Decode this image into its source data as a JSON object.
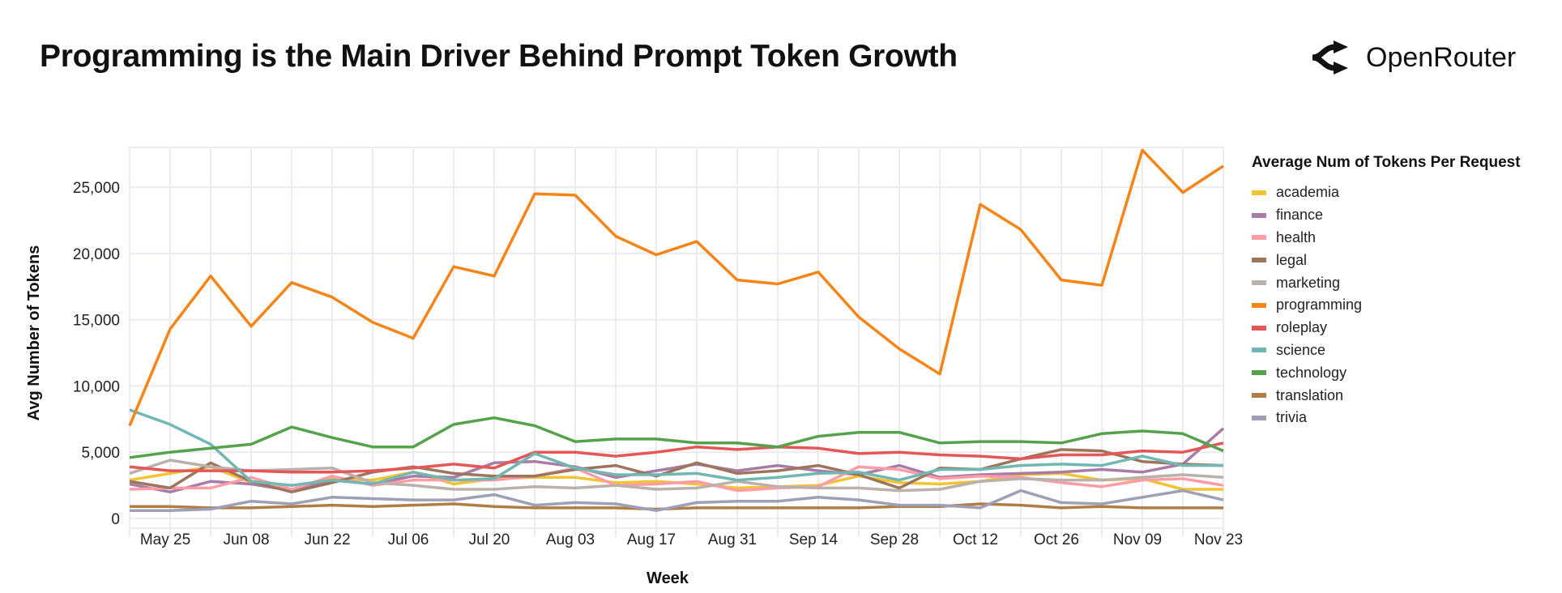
{
  "title": "Programming is the Main Driver Behind Prompt Token Growth",
  "brand": {
    "name": "OpenRouter",
    "icon": "openrouter-logo-icon"
  },
  "chart_data": {
    "type": "line",
    "title": "Programming is the Main Driver Behind Prompt Token Growth",
    "xlabel": "Week",
    "ylabel": "Avg Number of Tokens",
    "legend_title": "Average Num of Tokens Per Request",
    "legend_position": "right",
    "grid": true,
    "ylim": [
      0,
      28000
    ],
    "yticks": [
      0,
      5000,
      10000,
      15000,
      20000,
      25000
    ],
    "ytick_labels": [
      "0",
      "5,000",
      "10,000",
      "15,000",
      "20,000",
      "25,000"
    ],
    "x": [
      "May 18",
      "May 25",
      "Jun 01",
      "Jun 08",
      "Jun 15",
      "Jun 22",
      "Jun 29",
      "Jul 06",
      "Jul 13",
      "Jul 20",
      "Jul 27",
      "Aug 03",
      "Aug 10",
      "Aug 17",
      "Aug 24",
      "Aug 31",
      "Sep 07",
      "Sep 14",
      "Sep 21",
      "Sep 28",
      "Oct 05",
      "Oct 12",
      "Oct 19",
      "Oct 26",
      "Nov 02",
      "Nov 09",
      "Nov 16",
      "Nov 23"
    ],
    "xtick_labels": [
      "May 25",
      "Jun 08",
      "Jun 22",
      "Jul 06",
      "Jul 20",
      "Aug 03",
      "Aug 17",
      "Aug 31",
      "Sep 14",
      "Sep 28",
      "Oct 12",
      "Oct 26",
      "Nov 09",
      "Nov 23"
    ],
    "series": [
      {
        "name": "academia",
        "color": "#f1c433",
        "values": [
          2900,
          3400,
          3900,
          2700,
          2100,
          3000,
          2900,
          3500,
          2600,
          3000,
          3100,
          3100,
          2700,
          2800,
          2600,
          2300,
          2400,
          2500,
          3200,
          2700,
          2600,
          2800,
          3300,
          3400,
          2900,
          3000,
          2200,
          2200
        ]
      },
      {
        "name": "finance",
        "color": "#a97ba7",
        "values": [
          2600,
          2000,
          2800,
          2600,
          2100,
          2900,
          2600,
          3200,
          3100,
          4200,
          4300,
          3900,
          3100,
          3600,
          4100,
          3600,
          4000,
          3600,
          3300,
          4000,
          3100,
          3300,
          3400,
          3500,
          3700,
          3500,
          4100,
          6800
        ]
      },
      {
        "name": "health",
        "color": "#ff9da6",
        "values": [
          2200,
          2300,
          2300,
          3100,
          2200,
          3200,
          2500,
          2900,
          2900,
          2900,
          3200,
          3800,
          2500,
          2600,
          2800,
          2100,
          2300,
          2400,
          3900,
          3700,
          3000,
          3200,
          3100,
          2700,
          2400,
          2900,
          3000,
          2500
        ]
      },
      {
        "name": "legal",
        "color": "#9d755d",
        "values": [
          2800,
          2300,
          4200,
          2800,
          2000,
          2700,
          3500,
          3900,
          3400,
          3200,
          3200,
          3700,
          4000,
          3200,
          4200,
          3400,
          3600,
          4000,
          3300,
          2300,
          3800,
          3700,
          4500,
          5200,
          5100,
          4300,
          4100,
          4000
        ]
      },
      {
        "name": "marketing",
        "color": "#bab0ac",
        "values": [
          3400,
          4400,
          3900,
          3600,
          3700,
          3800,
          2700,
          2500,
          2200,
          2200,
          2400,
          2300,
          2500,
          2200,
          2300,
          2800,
          2400,
          2300,
          2300,
          2100,
          2200,
          2800,
          3000,
          2900,
          2900,
          3100,
          3300,
          3100
        ]
      },
      {
        "name": "programming",
        "color": "#f58518",
        "values": [
          7000,
          14300,
          18300,
          14500,
          17800,
          16700,
          14800,
          13600,
          19000,
          18300,
          24500,
          24400,
          21300,
          19900,
          20900,
          18000,
          17700,
          18600,
          15200,
          12800,
          10900,
          23700,
          21800,
          18000,
          17600,
          27800,
          24600,
          26600
        ]
      },
      {
        "name": "roleplay",
        "color": "#e45756",
        "values": [
          3900,
          3600,
          3600,
          3600,
          3500,
          3500,
          3600,
          3800,
          4100,
          3800,
          5000,
          5000,
          4700,
          5000,
          5400,
          5200,
          5400,
          5300,
          4900,
          5000,
          4800,
          4700,
          4500,
          4800,
          4800,
          5100,
          5000,
          5700
        ]
      },
      {
        "name": "science",
        "color": "#72b7b2",
        "values": [
          8200,
          7100,
          5600,
          2800,
          2500,
          2900,
          2600,
          3500,
          2900,
          3000,
          4900,
          3800,
          3300,
          3300,
          3400,
          2900,
          3100,
          3400,
          3500,
          2900,
          3700,
          3700,
          4000,
          4100,
          4000,
          4700,
          4000,
          4000
        ]
      },
      {
        "name": "technology",
        "color": "#54a24b",
        "values": [
          4600,
          5000,
          5300,
          5600,
          6900,
          6100,
          5400,
          5400,
          7100,
          7600,
          7000,
          5800,
          6000,
          6000,
          5700,
          5700,
          5400,
          6200,
          6500,
          6500,
          5700,
          5800,
          5800,
          5700,
          6400,
          6600,
          6400,
          5100
        ]
      },
      {
        "name": "translation",
        "color": "#b07d45",
        "values": [
          900,
          900,
          800,
          800,
          900,
          1000,
          900,
          1000,
          1100,
          900,
          800,
          800,
          800,
          700,
          800,
          800,
          800,
          800,
          800,
          900,
          900,
          1100,
          1000,
          800,
          900,
          800,
          800,
          800
        ]
      },
      {
        "name": "trivia",
        "color": "#9da0b6",
        "values": [
          600,
          600,
          700,
          1300,
          1100,
          1600,
          1500,
          1400,
          1400,
          1800,
          1000,
          1200,
          1100,
          600,
          1200,
          1300,
          1300,
          1600,
          1400,
          1000,
          1000,
          800,
          2100,
          1200,
          1100,
          1600,
          2100,
          1400
        ]
      }
    ]
  }
}
